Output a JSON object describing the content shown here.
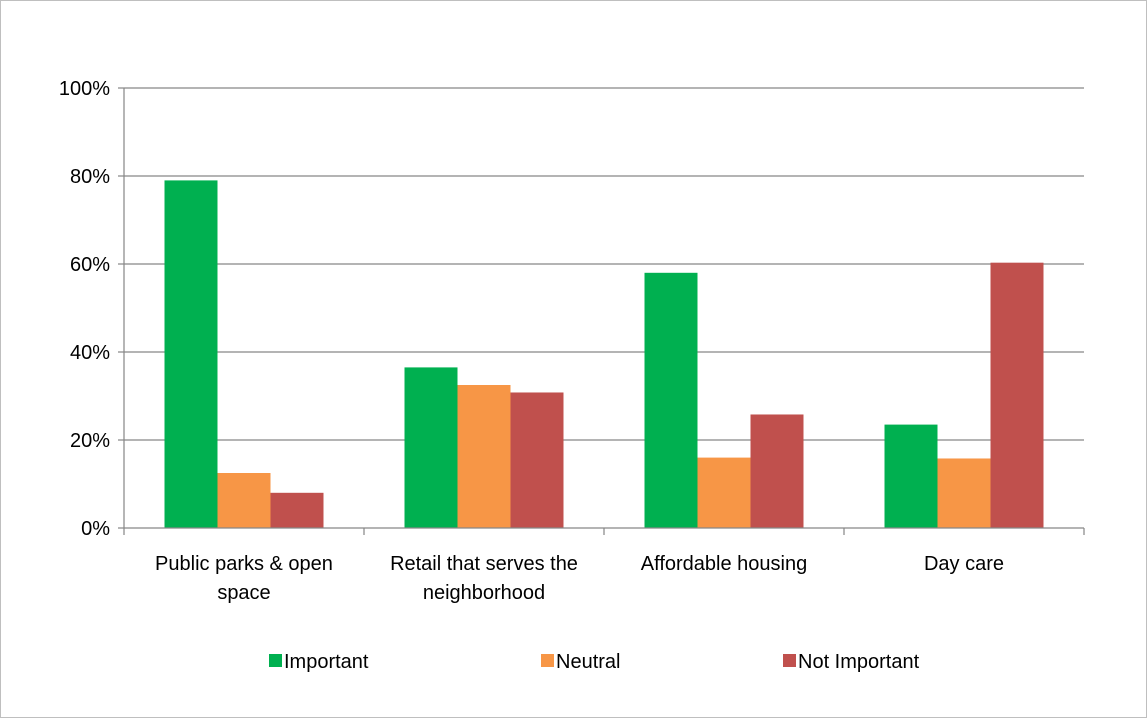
{
  "chart_data": {
    "type": "bar",
    "title": "",
    "xlabel": "",
    "ylabel": "",
    "categories": [
      [
        "Public parks & open",
        "space"
      ],
      [
        "Retail that serves the",
        "neighborhood"
      ],
      [
        "Affordable housing"
      ],
      [
        "Day care"
      ]
    ],
    "series": [
      {
        "name": "Important",
        "color": "#00b050",
        "values": [
          79,
          36.5,
          58,
          23.5
        ]
      },
      {
        "name": "Neutral",
        "color": "#f79646",
        "values": [
          12.5,
          32.5,
          16,
          15.8
        ]
      },
      {
        "name": "Not Important",
        "color": "#c0504d",
        "values": [
          8,
          30.8,
          25.8,
          60.3
        ]
      }
    ],
    "ylim": [
      0,
      100
    ],
    "yticks": [
      0,
      20,
      40,
      60,
      80,
      100
    ],
    "ytick_labels": [
      "0%",
      "20%",
      "40%",
      "60%",
      "80%",
      "100%"
    ],
    "grid": true,
    "legend_position": "bottom"
  }
}
